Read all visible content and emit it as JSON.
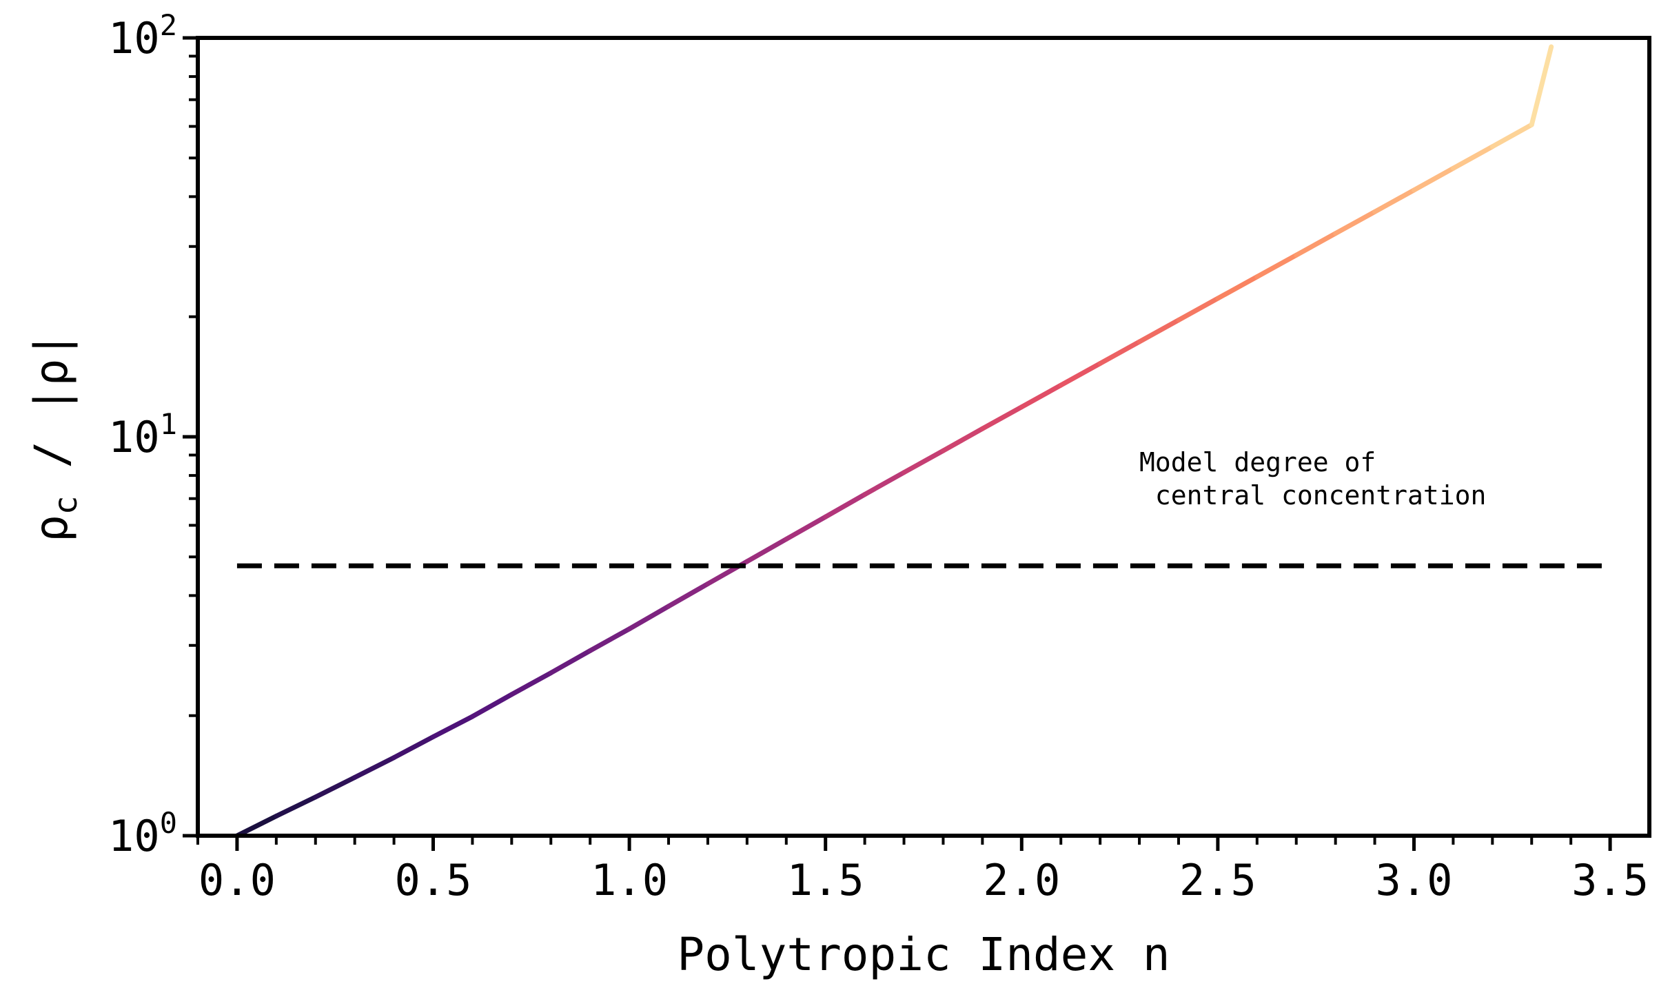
{
  "chart_data": {
    "type": "line",
    "title": "",
    "xlabel": "Polytropic Index n",
    "ylabel": "ρc / |ρ|",
    "ylabel_parts": {
      "main": "ρ",
      "sub": "c",
      "rest": " / |ρ|"
    },
    "xlim": [
      -0.1,
      3.6
    ],
    "ylim": [
      1,
      100
    ],
    "yscale": "log",
    "grid": false,
    "x_ticks": [
      "0.0",
      "0.5",
      "1.0",
      "1.5",
      "2.0",
      "2.5",
      "3.0",
      "3.5"
    ],
    "y_ticks": [
      {
        "base": "10",
        "exp": "0",
        "value": 1
      },
      {
        "base": "10",
        "exp": "1",
        "value": 10
      },
      {
        "base": "10",
        "exp": "2",
        "value": 100
      }
    ],
    "colormap": "magma",
    "series": [
      {
        "kind": "curve",
        "x": [
          0.0,
          0.1,
          0.2,
          0.3,
          0.4,
          0.5,
          0.6,
          0.7,
          0.8,
          0.9,
          1.0,
          1.1,
          1.2,
          1.3,
          1.4,
          1.5,
          1.6,
          1.7,
          1.8,
          1.9,
          2.0,
          2.1,
          2.2,
          2.3,
          2.4,
          2.5,
          2.6,
          2.7,
          2.8,
          2.9,
          3.0,
          3.1,
          3.2,
          3.3,
          3.35
        ],
        "y": [
          1.0,
          1.12,
          1.25,
          1.4,
          1.57,
          1.77,
          1.99,
          2.26,
          2.56,
          2.91,
          3.3,
          3.76,
          4.28,
          4.87,
          5.54,
          6.3,
          7.17,
          8.14,
          9.23,
          10.48,
          11.88,
          13.47,
          15.27,
          17.31,
          19.62,
          22.23,
          25.19,
          28.54,
          32.34,
          36.65,
          41.54,
          47.1,
          53.4,
          60.58,
          95.0
        ]
      },
      {
        "kind": "reference",
        "style": "dashed",
        "color": "#000000",
        "x": [
          0.0,
          3.5
        ],
        "y": [
          4.75,
          4.75
        ]
      }
    ],
    "annotation": {
      "text_line1": "Model degree of",
      "text_line2": " central concentration",
      "x": 2.3,
      "y": 8.2
    }
  }
}
